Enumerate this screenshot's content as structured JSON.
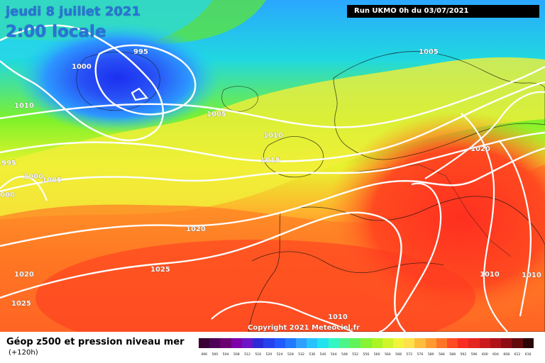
{
  "header": {
    "date": "jeudi 8 juillet 2021",
    "time": "2:00 locale",
    "run": "Run UKMO 0h du 03/07/2021"
  },
  "map": {
    "type": "weather forecast map",
    "region": "North Atlantic and Europe",
    "field": "500 hPa geopotential colours with sea-level pressure contours",
    "isobar_labels": [
      {
        "id": "label-995-top",
        "value": "995"
      },
      {
        "id": "label-1000-left",
        "value": "1000"
      },
      {
        "id": "label-1010-left",
        "value": "1010"
      },
      {
        "id": "label-1005-top-right",
        "value": "1005"
      },
      {
        "id": "label-1005-center",
        "value": "1005"
      },
      {
        "id": "label-1010-center",
        "value": "1010"
      },
      {
        "id": "label-1015-center",
        "value": "1015"
      },
      {
        "id": "label-1020-right",
        "value": "1020"
      },
      {
        "id": "label-995-edge",
        "value": "995"
      },
      {
        "id": "label-1000-edge",
        "value": "1000"
      },
      {
        "id": "label-1005-west",
        "value": "1005"
      },
      {
        "id": "label-000-edge",
        "value": "000"
      },
      {
        "id": "label-1020-mid-left",
        "value": "1020"
      },
      {
        "id": "label-1025-mid",
        "value": "1025"
      },
      {
        "id": "label-1020-bottom-left",
        "value": "1020"
      },
      {
        "id": "label-1025-bottom-left",
        "value": "1025"
      },
      {
        "id": "label-1010-bottom-center",
        "value": "1010"
      },
      {
        "id": "label-1010-bottom-right-a",
        "value": "1010"
      },
      {
        "id": "label-1010-bottom-right-b",
        "value": "1010"
      }
    ],
    "copyright": "Copyright 2021 Meteociel.fr"
  },
  "legend": {
    "title": "Géop z500 et pression niveau mer",
    "subtitle": "(+120h)",
    "scale_labels": [
      "496",
      "500",
      "504",
      "508",
      "512",
      "516",
      "520",
      "524",
      "528",
      "532",
      "536",
      "540",
      "544",
      "548",
      "552",
      "556",
      "560",
      "564",
      "568",
      "572",
      "576",
      "580",
      "584",
      "588",
      "592",
      "596",
      "600",
      "604",
      "608",
      "612",
      "616"
    ],
    "scale_colors": [
      "#3a0034",
      "#4e0058",
      "#6b0070",
      "#7e00a8",
      "#6e14c8",
      "#2c2ad8",
      "#2740ee",
      "#1f59ff",
      "#2279ff",
      "#2fa0ff",
      "#28c3ff",
      "#22e2ee",
      "#33f6c3",
      "#4cf58a",
      "#62f35b",
      "#86f432",
      "#aaf526",
      "#cff52a",
      "#f0f43a",
      "#fee04a",
      "#ffbd3b",
      "#ff9a2e",
      "#ff7426",
      "#ff4c22",
      "#f92d22",
      "#e5251f",
      "#cc191e",
      "#b0121a",
      "#8e0d15",
      "#640a0c",
      "#2a0406"
    ]
  }
}
